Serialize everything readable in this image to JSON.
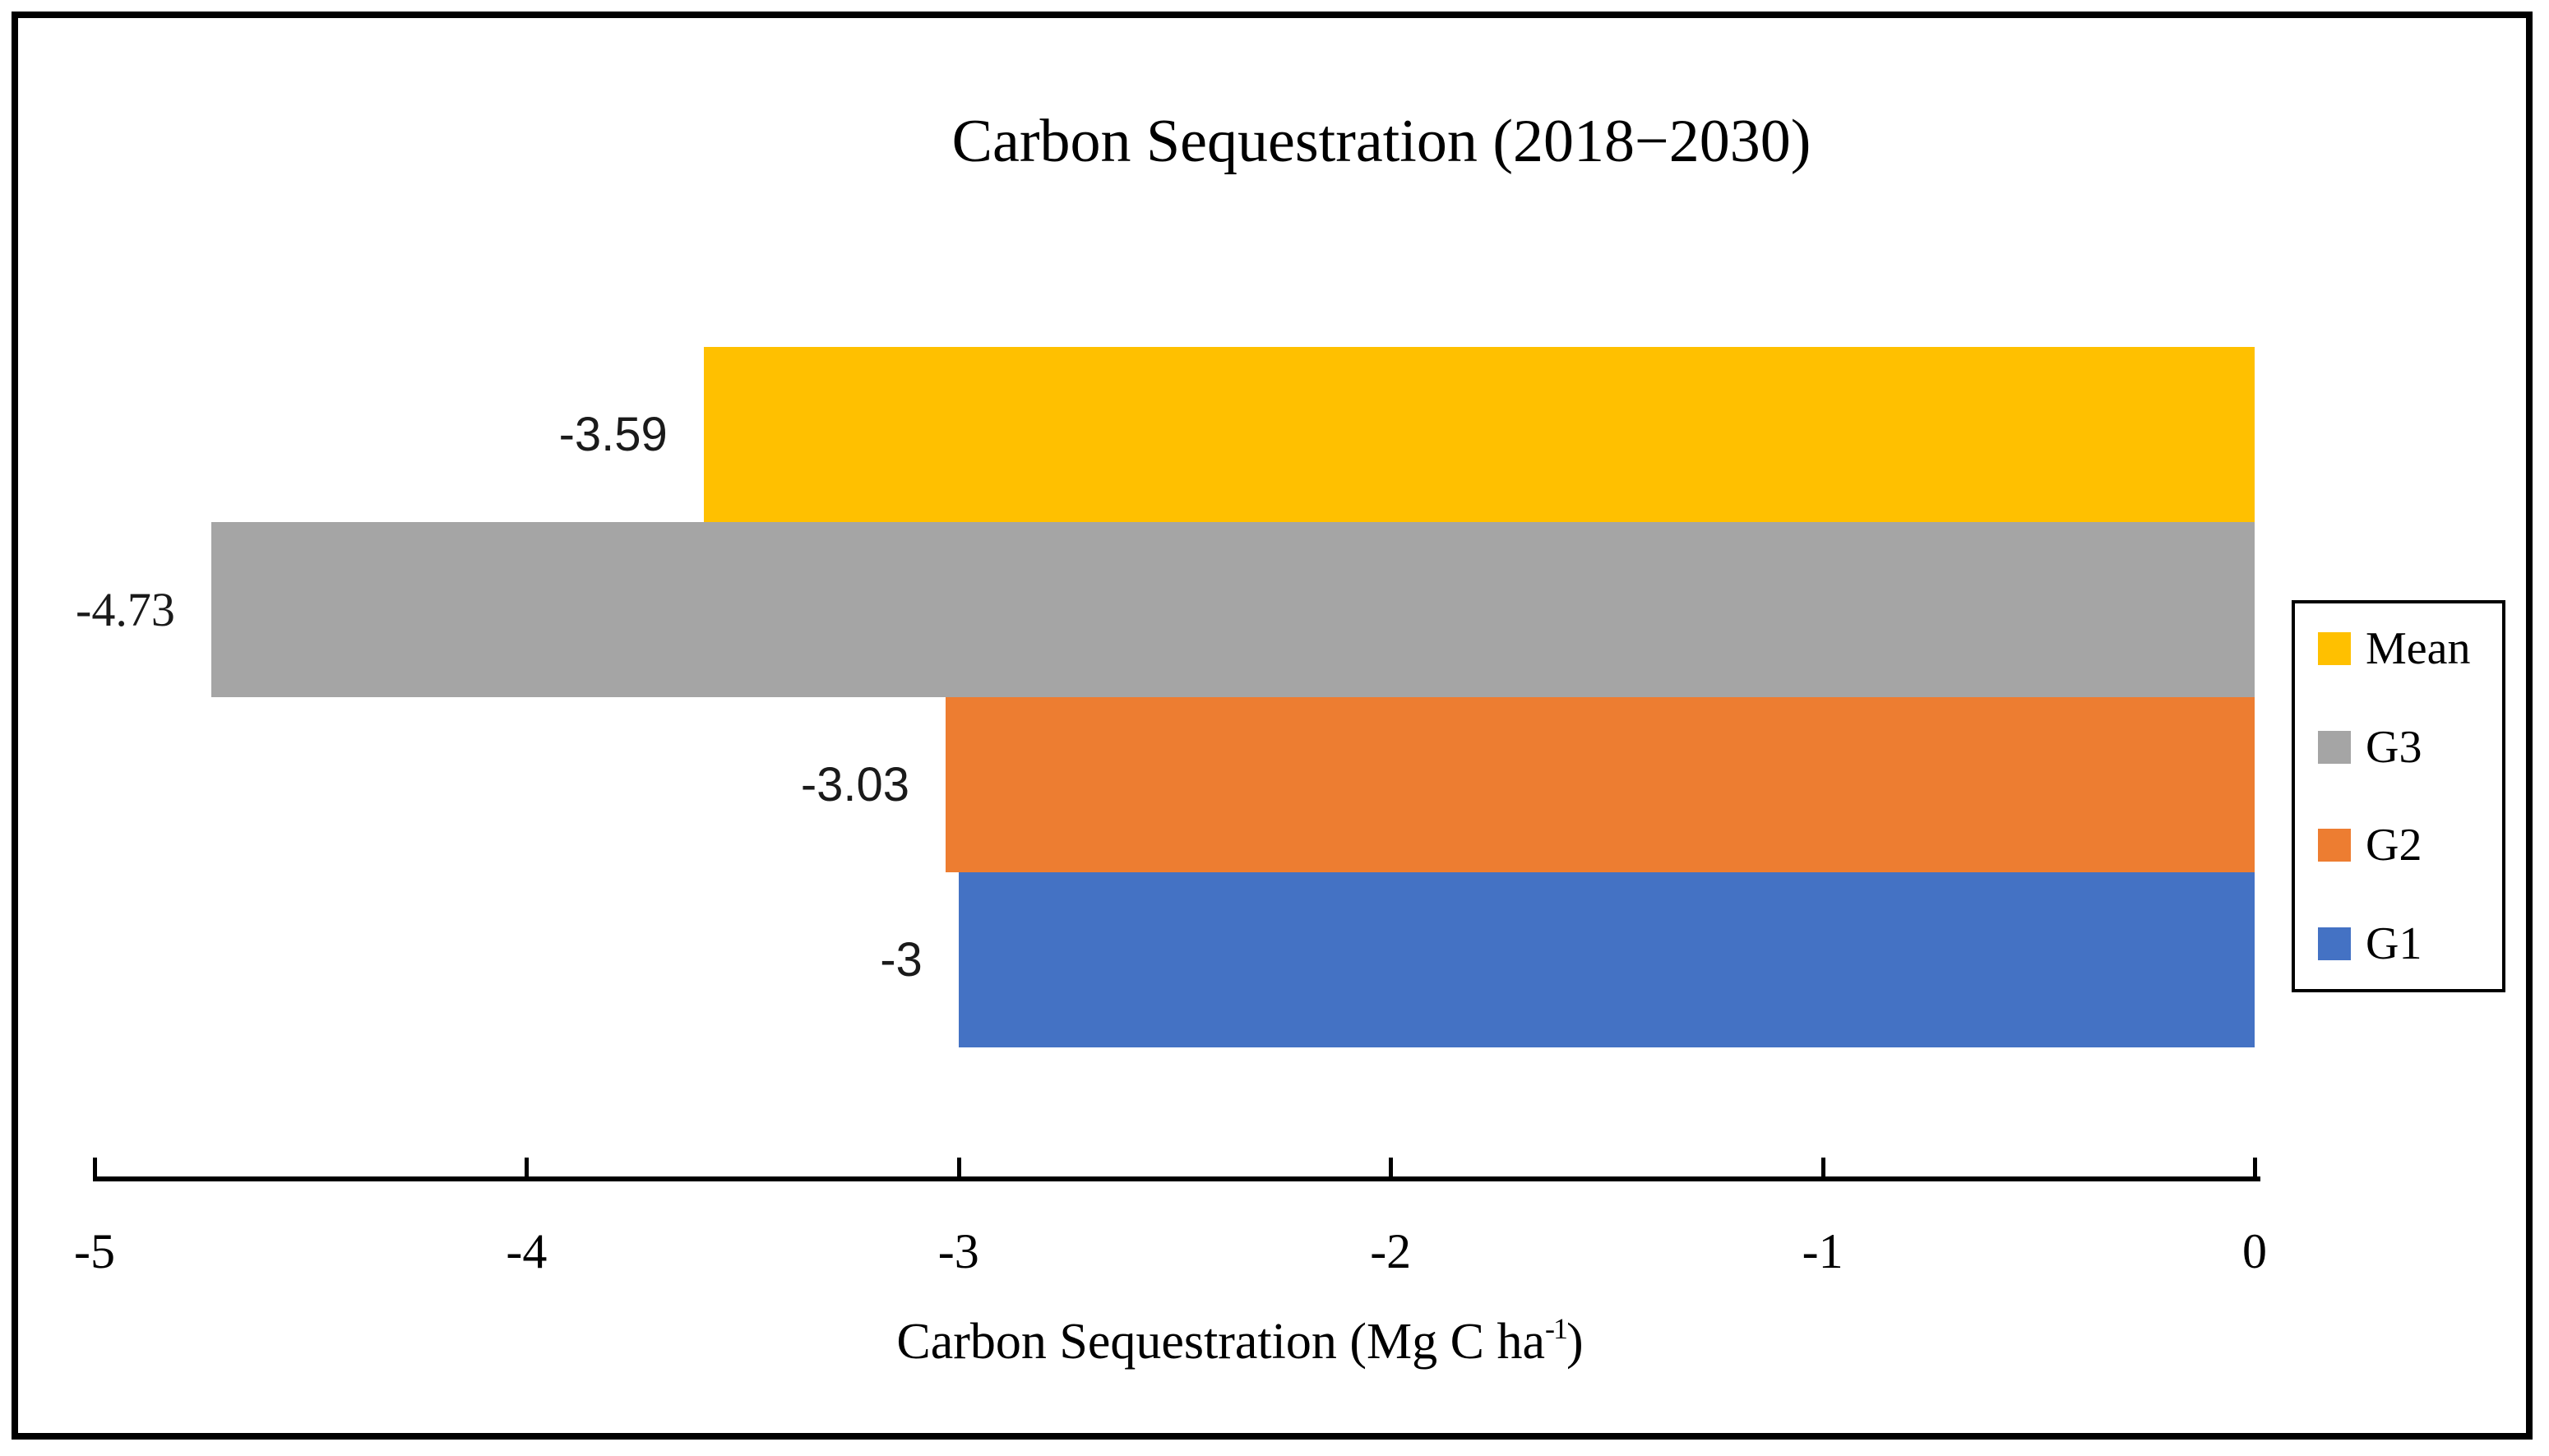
{
  "chart": {
    "title": "Carbon Sequestration (2018−2030)",
    "x_axis_title": {
      "prefix": "Carbon Sequestration (Mg C ha",
      "superscript": "-1",
      "suffix": ")"
    }
  },
  "chart_data": {
    "type": "bar",
    "orientation": "horizontal",
    "title": "Carbon Sequestration (2018−2030)",
    "xlabel": "Carbon Sequestration (Mg C ha⁻¹)",
    "ylabel": "",
    "xlim": [
      -5,
      0
    ],
    "x_ticks": [
      -5,
      -4,
      -3,
      -2,
      -1,
      0
    ],
    "grid": false,
    "legend_position": "right-middle",
    "bar_order_top_to_bottom": [
      "Mean",
      "G3",
      "G2",
      "G1"
    ],
    "series": [
      {
        "name": "Mean",
        "value": -3.59,
        "data_label": "-3.59",
        "color": "#FFC000",
        "label_font": "sans"
      },
      {
        "name": "G3",
        "value": -4.73,
        "data_label": "-4.73",
        "color": "#A5A5A5",
        "label_font": "serif"
      },
      {
        "name": "G2",
        "value": -3.03,
        "data_label": "-3.03",
        "color": "#ED7D31",
        "label_font": "sans"
      },
      {
        "name": "G1",
        "value": -3,
        "data_label": "-3",
        "color": "#4472C4",
        "label_font": "sans"
      }
    ]
  }
}
